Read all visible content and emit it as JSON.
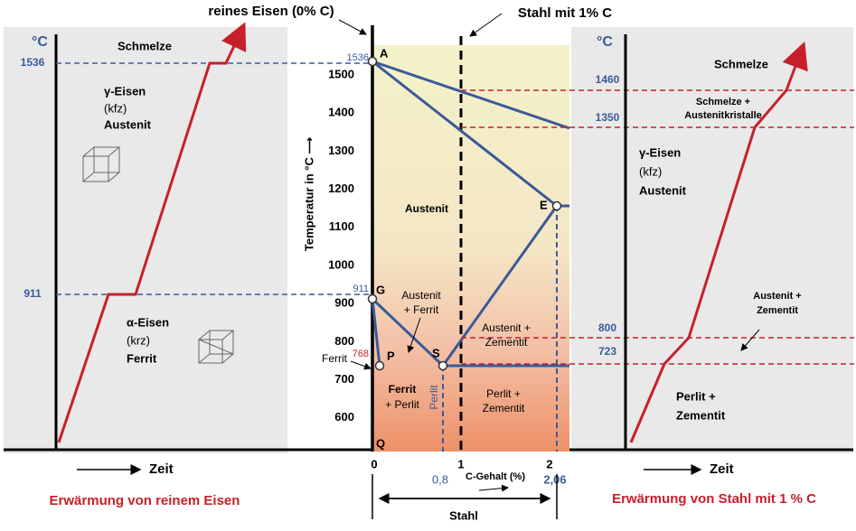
{
  "header": {
    "pure_iron": "reines Eisen (0% C)",
    "steel": "Stahl mit 1% C"
  },
  "left": {
    "unit": "°C",
    "melt": "Schmelze",
    "t1536": "1536",
    "t911": "911",
    "gamma": [
      "γ-Eisen",
      "(kfz)",
      "Austenit"
    ],
    "alpha": [
      "α-Eisen",
      "(krz)",
      "Ferrit"
    ],
    "time": "Zeit",
    "caption": "Erwärmung von reinem Eisen"
  },
  "center": {
    "axis_label": "Temperatur in °C ⟶",
    "yticks": [
      "1500",
      "1400",
      "1300",
      "1200",
      "1100",
      "1000",
      "900",
      "800",
      "700",
      "600"
    ],
    "xticks": [
      "0",
      "1",
      "2"
    ],
    "x08": "0,8",
    "x206": "2,06",
    "x_label": "C-Gehalt (%)",
    "t1536": "1536",
    "t911": "911",
    "t768": "768",
    "points": [
      "A",
      "E",
      "G",
      "P",
      "S",
      "Q"
    ],
    "regions": {
      "austenit": "Austenit",
      "austenit_ferrit": [
        "Austenit",
        "+ Ferrit"
      ],
      "austenit_zementit": [
        "Austenit +",
        "Zementit"
      ],
      "ferrit_perlit": [
        "Ferrit",
        "+ Perlit"
      ],
      "perlit": "Perlit",
      "perlit_zementit": [
        "Perlit +",
        "Zementit"
      ],
      "ferrit": "Ferrit"
    },
    "steel": "Stahl"
  },
  "right": {
    "unit": "°C",
    "melt": "Schmelze",
    "t1460": "1460",
    "t1350": "1350",
    "t800": "800",
    "t723": "723",
    "melt_aus": [
      "Schmelze +",
      "Austenitkristalle"
    ],
    "gamma": [
      "γ-Eisen",
      "(kfz)",
      "Austenit"
    ],
    "aus_zem": [
      "Austenit +",
      "Zementit"
    ],
    "perl_zem": [
      "Perlit +",
      "Zementit"
    ],
    "time": "Zeit",
    "caption": "Erwärmung von Stahl mit 1 % C"
  }
}
